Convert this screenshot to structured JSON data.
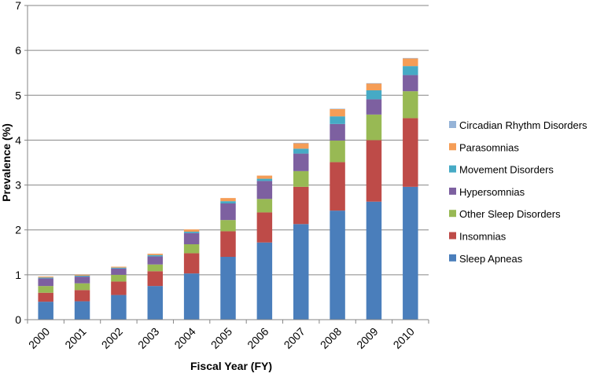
{
  "chart_data": {
    "type": "bar",
    "stacked": true,
    "title": "",
    "xlabel": "Fiscal Year (FY)",
    "ylabel": "Prevalence (%)",
    "ylim": [
      0,
      7
    ],
    "yticks": [
      0,
      1,
      2,
      3,
      4,
      5,
      6,
      7
    ],
    "grid": true,
    "legend_position": "right",
    "categories": [
      "2000",
      "2001",
      "2002",
      "2003",
      "2004",
      "2005",
      "2006",
      "2007",
      "2008",
      "2009",
      "2010"
    ],
    "series": [
      {
        "name": "Sleep Apneas",
        "color": "#4a7ebb",
        "values": [
          0.4,
          0.41,
          0.55,
          0.75,
          1.03,
          1.4,
          1.72,
          2.13,
          2.43,
          2.63,
          2.96
        ]
      },
      {
        "name": "Insomnias",
        "color": "#be4b48",
        "values": [
          0.2,
          0.25,
          0.3,
          0.33,
          0.45,
          0.57,
          0.67,
          0.83,
          1.08,
          1.37,
          1.53
        ]
      },
      {
        "name": "Other Sleep Disorders",
        "color": "#98b954",
        "values": [
          0.15,
          0.15,
          0.15,
          0.15,
          0.2,
          0.25,
          0.3,
          0.35,
          0.48,
          0.57,
          0.6
        ]
      },
      {
        "name": "Hypersomnias",
        "color": "#7d60a0",
        "values": [
          0.17,
          0.15,
          0.14,
          0.18,
          0.25,
          0.37,
          0.4,
          0.39,
          0.37,
          0.34,
          0.36
        ]
      },
      {
        "name": "Movement Disorders",
        "color": "#46aac5",
        "values": [
          0.02,
          0.02,
          0.02,
          0.03,
          0.03,
          0.05,
          0.05,
          0.11,
          0.17,
          0.2,
          0.2
        ]
      },
      {
        "name": "Parasomnias",
        "color": "#f59d56",
        "values": [
          0.02,
          0.02,
          0.02,
          0.03,
          0.05,
          0.07,
          0.07,
          0.12,
          0.16,
          0.15,
          0.17
        ]
      },
      {
        "name": "Circadian Rhythm Disorders",
        "color": "#95b3d7",
        "values": [
          0.0,
          0.0,
          0.0,
          0.0,
          0.0,
          0.0,
          0.0,
          0.01,
          0.01,
          0.01,
          0.01
        ]
      }
    ],
    "legend_order": [
      "Circadian Rhythm Disorders",
      "Parasomnias",
      "Movement Disorders",
      "Hypersomnias",
      "Other Sleep Disorders",
      "Insomnias",
      "Sleep Apneas"
    ],
    "gridline_color": "#868686",
    "axis_color": "#868686"
  }
}
